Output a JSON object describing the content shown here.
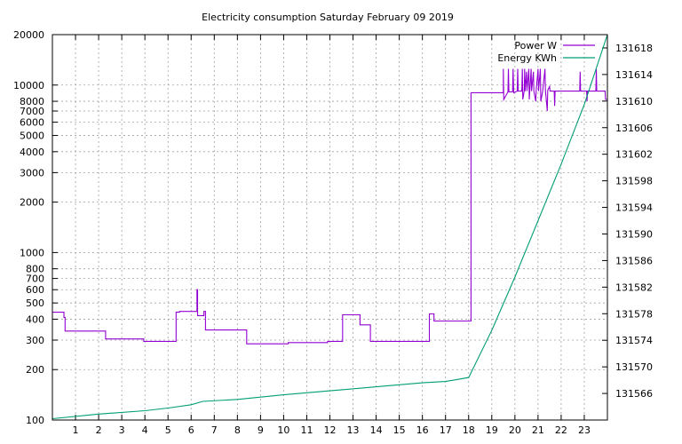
{
  "chart_data": {
    "type": "line",
    "title": "Electricity consumption Saturday February 09 2019",
    "xlabel": "",
    "ylabel": "",
    "y2label": "",
    "xlim": [
      0,
      24
    ],
    "ylim": [
      100,
      20000
    ],
    "y_scale": "log",
    "y2lim": [
      131562,
      131620
    ],
    "grid": true,
    "legend_position": "top-right",
    "x_ticks": [
      "1",
      "2",
      "3",
      "4",
      "5",
      "6",
      "7",
      "8",
      "9",
      "10",
      "11",
      "12",
      "13",
      "14",
      "15",
      "16",
      "17",
      "18",
      "19",
      "20",
      "21",
      "22",
      "23"
    ],
    "y_ticks": [
      {
        "value": 100,
        "label": "100"
      },
      {
        "value": 200,
        "label": "200"
      },
      {
        "value": 300,
        "label": "300"
      },
      {
        "value": 400,
        "label": "400"
      },
      {
        "value": 500,
        "label": "500"
      },
      {
        "value": 600,
        "label": "600"
      },
      {
        "value": 700,
        "label": "700"
      },
      {
        "value": 800,
        "label": "800"
      },
      {
        "value": 1000,
        "label": "1000"
      },
      {
        "value": 2000,
        "label": "2000"
      },
      {
        "value": 3000,
        "label": "3000"
      },
      {
        "value": 4000,
        "label": "4000"
      },
      {
        "value": 5000,
        "label": "5000"
      },
      {
        "value": 6000,
        "label": "6000"
      },
      {
        "value": 7000,
        "label": "7000"
      },
      {
        "value": 8000,
        "label": "8000"
      },
      {
        "value": 10000,
        "label": "10000"
      },
      {
        "value": 20000,
        "label": "20000"
      }
    ],
    "y2_ticks": [
      "131566",
      "131570",
      "131574",
      "131578",
      "131582",
      "131586",
      "131590",
      "131594",
      "131598",
      "131602",
      "131606",
      "131610",
      "131614",
      "131618"
    ],
    "series": [
      {
        "name": "Power W",
        "axis": "y",
        "color": "#9400d3",
        "points": [
          [
            0,
            440
          ],
          [
            0.5,
            440
          ],
          [
            0.5,
            410
          ],
          [
            0.55,
            410
          ],
          [
            0.55,
            340
          ],
          [
            2.3,
            340
          ],
          [
            2.3,
            305
          ],
          [
            3.95,
            305
          ],
          [
            3.95,
            295
          ],
          [
            5.35,
            295
          ],
          [
            5.35,
            440
          ],
          [
            5.5,
            440
          ],
          [
            5.5,
            445
          ],
          [
            6.25,
            445
          ],
          [
            6.25,
            600
          ],
          [
            6.28,
            600
          ],
          [
            6.28,
            420
          ],
          [
            6.55,
            420
          ],
          [
            6.55,
            445
          ],
          [
            6.62,
            445
          ],
          [
            6.62,
            345
          ],
          [
            8.4,
            345
          ],
          [
            8.4,
            285
          ],
          [
            10.2,
            285
          ],
          [
            10.2,
            290
          ],
          [
            11.9,
            290
          ],
          [
            11.9,
            295
          ],
          [
            12.55,
            295
          ],
          [
            12.55,
            425
          ],
          [
            13.3,
            425
          ],
          [
            13.3,
            370
          ],
          [
            13.75,
            370
          ],
          [
            13.75,
            295
          ],
          [
            16.3,
            295
          ],
          [
            16.3,
            430
          ],
          [
            16.5,
            430
          ],
          [
            16.5,
            390
          ],
          [
            18.1,
            390
          ],
          [
            18.1,
            9000
          ],
          [
            19.5,
            9000
          ],
          [
            19.5,
            12500
          ],
          [
            19.52,
            8200
          ],
          [
            19.7,
            9100
          ],
          [
            19.72,
            12500
          ],
          [
            19.74,
            9100
          ],
          [
            19.9,
            9100
          ],
          [
            19.92,
            12500
          ],
          [
            19.95,
            9000
          ],
          [
            20.1,
            9200
          ],
          [
            20.12,
            12500
          ],
          [
            20.14,
            9200
          ],
          [
            20.3,
            9200
          ],
          [
            20.32,
            12500
          ],
          [
            20.34,
            8200
          ],
          [
            20.4,
            9200
          ],
          [
            20.42,
            12500
          ],
          [
            20.44,
            9200
          ],
          [
            20.5,
            12000
          ],
          [
            20.52,
            9200
          ],
          [
            20.6,
            12500
          ],
          [
            20.62,
            8200
          ],
          [
            20.7,
            12500
          ],
          [
            20.72,
            9200
          ],
          [
            20.8,
            12000
          ],
          [
            20.82,
            9200
          ],
          [
            20.9,
            8000
          ],
          [
            20.92,
            9300
          ],
          [
            21.0,
            12500
          ],
          [
            21.02,
            9200
          ],
          [
            21.1,
            12500
          ],
          [
            21.12,
            8000
          ],
          [
            21.2,
            9200
          ],
          [
            21.3,
            12500
          ],
          [
            21.32,
            9300
          ],
          [
            21.4,
            7000
          ],
          [
            21.42,
            9300
          ],
          [
            21.5,
            9800
          ],
          [
            21.52,
            9200
          ],
          [
            21.7,
            9200
          ],
          [
            21.72,
            7500
          ],
          [
            21.74,
            9200
          ],
          [
            22.0,
            9200
          ],
          [
            22.8,
            9200
          ],
          [
            22.82,
            12000
          ],
          [
            22.84,
            9200
          ],
          [
            23.1,
            9200
          ],
          [
            23.12,
            8000
          ],
          [
            23.14,
            9200
          ],
          [
            23.5,
            9200
          ],
          [
            23.52,
            12500
          ],
          [
            23.54,
            9200
          ],
          [
            23.9,
            9200
          ],
          [
            23.92,
            8200
          ],
          [
            24,
            8200
          ]
        ]
      },
      {
        "name": "Energy KWh",
        "axis": "y2",
        "color": "#009e73",
        "points": [
          [
            0,
            131562.2
          ],
          [
            2,
            131562.9
          ],
          [
            4,
            131563.4
          ],
          [
            5,
            131563.8
          ],
          [
            6,
            131564.3
          ],
          [
            6.5,
            131564.8
          ],
          [
            8,
            131565.1
          ],
          [
            10,
            131565.8
          ],
          [
            12,
            131566.4
          ],
          [
            14,
            131567.0
          ],
          [
            16,
            131567.6
          ],
          [
            17,
            131567.8
          ],
          [
            18,
            131568.4
          ],
          [
            19,
            131575.5
          ],
          [
            20,
            131583.5
          ],
          [
            21,
            131592.0
          ],
          [
            22,
            131600.5
          ],
          [
            23,
            131609.5
          ],
          [
            24,
            131620.0
          ]
        ]
      }
    ]
  }
}
